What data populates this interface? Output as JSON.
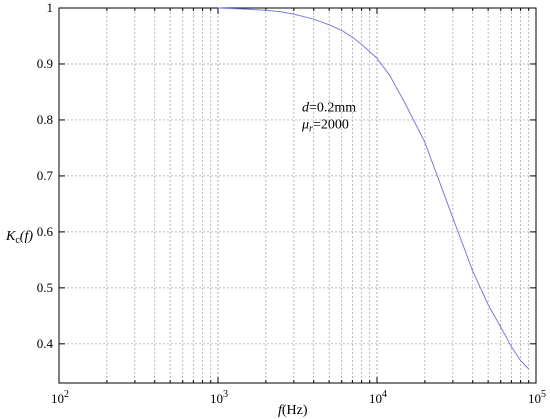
{
  "chart_data": {
    "type": "line",
    "xscale": "log",
    "xlim": [
      100,
      100000
    ],
    "ylim": [
      0.33,
      1.0
    ],
    "grid": true,
    "xlabel": {
      "italic": "f",
      "rest": "(Hz)"
    },
    "ylabel": {
      "main": "K",
      "sub": "c",
      "arg": "(f)"
    },
    "x_ticks": [
      {
        "value": 100,
        "base": "10",
        "exp": "2"
      },
      {
        "value": 1000,
        "base": "10",
        "exp": "3"
      },
      {
        "value": 10000,
        "base": "10",
        "exp": "4"
      },
      {
        "value": 100000,
        "base": "10",
        "exp": "5"
      }
    ],
    "y_ticks": [
      0.4,
      0.5,
      0.6,
      0.7,
      0.8,
      0.9,
      1
    ],
    "y_tick_labels": [
      "0.4",
      "0.5",
      "0.6",
      "0.7",
      "0.8",
      "0.9",
      "1"
    ],
    "annotations": [
      {
        "italic": "d",
        "rest": "=0.2mm",
        "x": 10000,
        "y": 0.815
      },
      {
        "italic": "μ",
        "sub": "r",
        "rest": "=2000",
        "x": 10000,
        "y": 0.785
      }
    ],
    "series": [
      {
        "x": [
          1000,
          1500,
          2000,
          2500,
          3000,
          4000,
          5000,
          6000,
          7000,
          8000,
          9000,
          10000,
          12000,
          15000,
          20000,
          30000,
          40000,
          50000,
          60000,
          70000,
          80000,
          90000
        ],
        "y": [
          1.0,
          0.998,
          0.996,
          0.993,
          0.989,
          0.98,
          0.97,
          0.96,
          0.948,
          0.935,
          0.922,
          0.91,
          0.88,
          0.83,
          0.76,
          0.625,
          0.53,
          0.47,
          0.43,
          0.395,
          0.37,
          0.355
        ]
      }
    ]
  }
}
